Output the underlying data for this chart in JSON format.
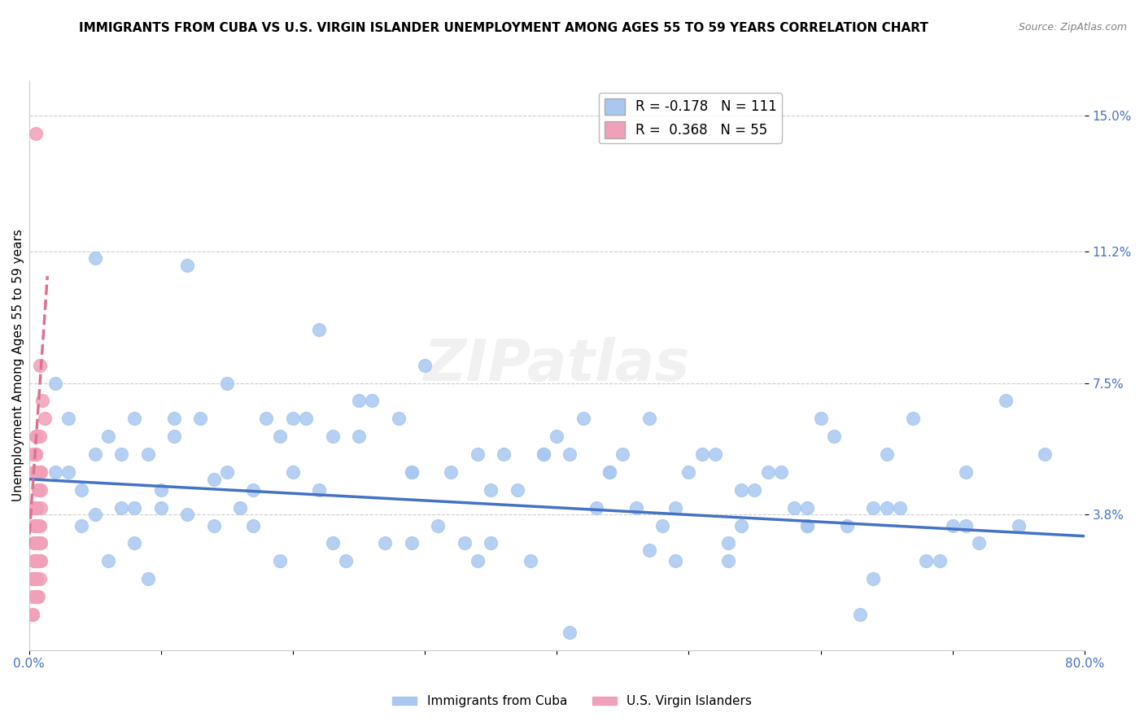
{
  "title": "IMMIGRANTS FROM CUBA VS U.S. VIRGIN ISLANDER UNEMPLOYMENT AMONG AGES 55 TO 59 YEARS CORRELATION CHART",
  "source": "Source: ZipAtlas.com",
  "ylabel": "Unemployment Among Ages 55 to 59 years",
  "xlim": [
    0.0,
    0.8
  ],
  "ylim": [
    0.0,
    0.16
  ],
  "xticks": [
    0.0,
    0.1,
    0.2,
    0.3,
    0.4,
    0.5,
    0.6,
    0.7,
    0.8
  ],
  "xticklabels": [
    "0.0%",
    "",
    "",
    "",
    "",
    "",
    "",
    "",
    "80.0%"
  ],
  "yticks": [
    0.038,
    0.075,
    0.112,
    0.15
  ],
  "yticklabels": [
    "3.8%",
    "7.5%",
    "11.2%",
    "15.0%"
  ],
  "blue_color": "#a8c8f0",
  "pink_color": "#f0a0b8",
  "blue_line_color": "#4472c4",
  "pink_line_color": "#e07090",
  "legend_blue_label": "Immigrants from Cuba",
  "legend_pink_label": "U.S. Virgin Islanders",
  "R_blue": -0.178,
  "N_blue": 111,
  "R_pink": 0.368,
  "N_pink": 55,
  "blue_scatter_x": [
    0.05,
    0.12,
    0.03,
    0.08,
    0.15,
    0.22,
    0.18,
    0.25,
    0.3,
    0.1,
    0.07,
    0.14,
    0.2,
    0.28,
    0.35,
    0.4,
    0.45,
    0.5,
    0.55,
    0.6,
    0.65,
    0.7,
    0.75,
    0.02,
    0.04,
    0.06,
    0.09,
    0.11,
    0.13,
    0.16,
    0.19,
    0.21,
    0.23,
    0.26,
    0.29,
    0.32,
    0.34,
    0.37,
    0.39,
    0.42,
    0.44,
    0.47,
    0.49,
    0.52,
    0.54,
    0.57,
    0.59,
    0.62,
    0.64,
    0.67,
    0.72,
    0.05,
    0.08,
    0.12,
    0.17,
    0.22,
    0.27,
    0.33,
    0.38,
    0.43,
    0.48,
    0.53,
    0.58,
    0.63,
    0.68,
    0.02,
    0.04,
    0.07,
    0.1,
    0.15,
    0.2,
    0.25,
    0.31,
    0.36,
    0.41,
    0.46,
    0.51,
    0.56,
    0.61,
    0.66,
    0.71,
    0.03,
    0.06,
    0.09,
    0.14,
    0.19,
    0.24,
    0.29,
    0.34,
    0.39,
    0.44,
    0.49,
    0.54,
    0.59,
    0.64,
    0.69,
    0.74,
    0.05,
    0.11,
    0.17,
    0.23,
    0.29,
    0.35,
    0.41,
    0.47,
    0.53,
    0.59,
    0.65,
    0.71,
    0.77,
    0.08
  ],
  "blue_scatter_y": [
    0.11,
    0.108,
    0.05,
    0.065,
    0.075,
    0.09,
    0.065,
    0.06,
    0.08,
    0.045,
    0.055,
    0.048,
    0.05,
    0.065,
    0.045,
    0.06,
    0.055,
    0.05,
    0.045,
    0.065,
    0.055,
    0.035,
    0.035,
    0.05,
    0.045,
    0.06,
    0.055,
    0.06,
    0.065,
    0.04,
    0.06,
    0.065,
    0.06,
    0.07,
    0.05,
    0.05,
    0.055,
    0.045,
    0.055,
    0.065,
    0.05,
    0.065,
    0.04,
    0.055,
    0.045,
    0.05,
    0.04,
    0.035,
    0.04,
    0.065,
    0.03,
    0.038,
    0.03,
    0.038,
    0.035,
    0.045,
    0.03,
    0.03,
    0.025,
    0.04,
    0.035,
    0.025,
    0.04,
    0.01,
    0.025,
    0.075,
    0.035,
    0.04,
    0.04,
    0.05,
    0.065,
    0.07,
    0.035,
    0.055,
    0.055,
    0.04,
    0.055,
    0.05,
    0.06,
    0.04,
    0.05,
    0.065,
    0.025,
    0.02,
    0.035,
    0.025,
    0.025,
    0.03,
    0.025,
    0.055,
    0.05,
    0.025,
    0.035,
    0.035,
    0.02,
    0.025,
    0.07,
    0.055,
    0.065,
    0.045,
    0.03,
    0.05,
    0.03,
    0.005,
    0.028,
    0.03,
    0.035,
    0.04,
    0.035,
    0.055,
    0.04
  ],
  "pink_scatter_x": [
    0.005,
    0.005,
    0.008,
    0.01,
    0.005,
    0.003,
    0.006,
    0.008,
    0.012,
    0.004,
    0.003,
    0.007,
    0.009,
    0.005,
    0.006,
    0.004,
    0.007,
    0.008,
    0.005,
    0.003,
    0.006,
    0.004,
    0.008,
    0.005,
    0.007,
    0.003,
    0.006,
    0.009,
    0.004,
    0.007,
    0.005,
    0.008,
    0.006,
    0.004,
    0.009,
    0.005,
    0.007,
    0.003,
    0.006,
    0.008,
    0.004,
    0.007,
    0.005,
    0.009,
    0.003,
    0.006,
    0.008,
    0.004,
    0.007,
    0.005,
    0.003,
    0.006,
    0.009,
    0.004,
    0.007
  ],
  "pink_scatter_y": [
    0.145,
    0.04,
    0.08,
    0.07,
    0.06,
    0.055,
    0.05,
    0.06,
    0.065,
    0.05,
    0.04,
    0.045,
    0.05,
    0.055,
    0.06,
    0.04,
    0.035,
    0.03,
    0.025,
    0.02,
    0.025,
    0.03,
    0.035,
    0.04,
    0.045,
    0.02,
    0.025,
    0.03,
    0.025,
    0.03,
    0.055,
    0.05,
    0.04,
    0.035,
    0.045,
    0.02,
    0.015,
    0.01,
    0.015,
    0.02,
    0.025,
    0.03,
    0.035,
    0.04,
    0.01,
    0.015,
    0.025,
    0.02,
    0.03,
    0.055,
    0.015,
    0.02,
    0.025,
    0.03,
    0.035
  ],
  "blue_trend_x": [
    0.0,
    0.8
  ],
  "blue_trend_y": [
    0.048,
    0.032
  ],
  "pink_trend_x": [
    -0.002,
    0.014
  ],
  "pink_trend_y": [
    0.02,
    0.105
  ],
  "watermark": "ZIPatlas",
  "background_color": "#ffffff",
  "grid_color": "#cccccc",
  "title_fontsize": 11,
  "axis_label_fontsize": 11,
  "tick_fontsize": 11,
  "ytick_color": "#4472c4",
  "xtick_color": "#4472c4"
}
